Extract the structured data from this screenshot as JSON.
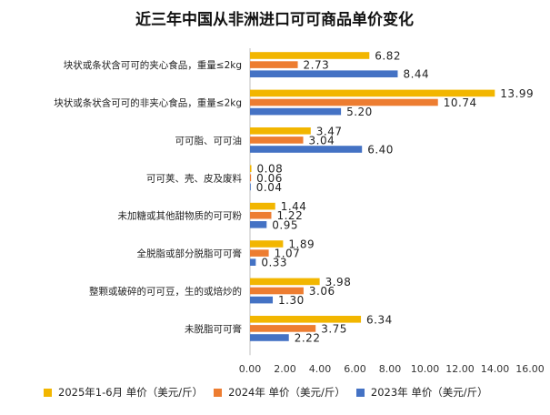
{
  "chart_data": {
    "type": "bar",
    "orientation": "horizontal",
    "title": "近三年中国从非洲进口可可商品单价变化",
    "categories": [
      "块状或条状含可可的夹心食品，重量≤2kg",
      "块状或条状含可可的非夹心食品，重量≤2kg",
      "可可脂、可可油",
      "可可荚、壳、皮及废料",
      "未加糖或其他甜物质的可可粉",
      "全脱脂或部分脱脂可可膏",
      "整颗或破碎的可可豆，生的或焙炒的",
      "未脱脂可可膏"
    ],
    "series": [
      {
        "name": "2025年1-6月 单价（美元/斤）",
        "color": "#F2B600",
        "values": [
          6.82,
          13.99,
          3.47,
          0.08,
          1.44,
          1.89,
          3.98,
          6.34
        ],
        "labels": [
          "6.82",
          "13.99",
          "3.47",
          "0.08",
          "1.44",
          "1.89",
          "3.98",
          "6.34"
        ]
      },
      {
        "name": "2024年 单价（美元/斤）",
        "color": "#ED7D31",
        "values": [
          2.73,
          10.74,
          3.04,
          0.06,
          1.22,
          1.07,
          3.06,
          3.75
        ],
        "labels": [
          "2.73",
          "10.74",
          "3.04",
          "0.06",
          "1.22",
          "1.07",
          "3.06",
          "3.75"
        ]
      },
      {
        "name": "2023年 单价（美元/斤）",
        "color": "#4472C4",
        "values": [
          8.44,
          5.2,
          6.4,
          0.04,
          0.95,
          0.33,
          1.3,
          2.22
        ],
        "labels": [
          "8.44",
          "5.20",
          "6.40",
          "0.04",
          "0.95",
          "0.33",
          "1.30",
          "2.22"
        ]
      }
    ],
    "xlim": [
      0,
      16
    ],
    "xticks": [
      0,
      2,
      4,
      6,
      8,
      10,
      12,
      14,
      16
    ],
    "xtick_labels": [
      "0.00",
      "2.00",
      "4.00",
      "6.00",
      "8.00",
      "10.00",
      "12.00",
      "14.00",
      "16.00"
    ],
    "grid": false,
    "legend_position": "bottom"
  }
}
